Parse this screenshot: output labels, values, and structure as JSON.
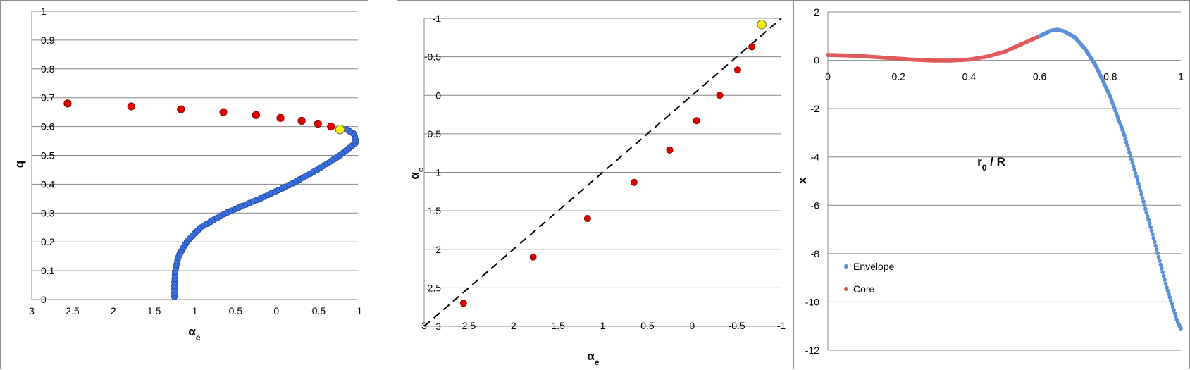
{
  "chart_data": [
    {
      "type": "scatter",
      "xlabel": "α",
      "xlabel_sub": "e",
      "ylabel": "q",
      "xlim": [
        3,
        -1
      ],
      "ylim": [
        0,
        1
      ],
      "x_reversed": true,
      "x_ticks": [
        "3",
        "2.5",
        "2",
        "1.5",
        "1",
        "0.5",
        "0",
        "-0.5",
        "-1"
      ],
      "y_ticks": [
        "0",
        "0.1",
        "0.2",
        "0.3",
        "0.4",
        "0.5",
        "0.6",
        "0.7",
        "0.8",
        "0.9",
        "1"
      ],
      "grid": "horizontal",
      "colors": {
        "red": "#e00000",
        "blue": "#3a6fe0",
        "yellow": "#f5f000"
      },
      "series": [
        {
          "color": "red",
          "x": [
            2.56,
            1.78,
            1.17,
            0.65,
            0.25,
            -0.05,
            -0.31,
            -0.51,
            -0.67
          ],
          "y": [
            0.68,
            0.67,
            0.66,
            0.65,
            0.64,
            0.63,
            0.62,
            0.61,
            0.6
          ]
        },
        {
          "color": "yellow",
          "x": [
            -0.78
          ],
          "y": [
            0.59
          ]
        },
        {
          "color": "blue",
          "curve": [
            [
              1.25,
              0.01
            ],
            [
              1.25,
              0.05
            ],
            [
              1.24,
              0.1
            ],
            [
              1.2,
              0.15
            ],
            [
              1.1,
              0.2
            ],
            [
              0.93,
              0.25
            ],
            [
              0.62,
              0.3
            ],
            [
              0.2,
              0.35
            ],
            [
              -0.18,
              0.4
            ],
            [
              -0.5,
              0.45
            ],
            [
              -0.78,
              0.5
            ],
            [
              -0.98,
              0.545
            ],
            [
              -0.95,
              0.575
            ],
            [
              -0.86,
              0.59
            ]
          ]
        }
      ]
    },
    {
      "type": "scatter",
      "xlabel": "α",
      "xlabel_sub": "e",
      "ylabel": "α",
      "ylabel_sub": "c",
      "xlim": [
        3,
        -1
      ],
      "ylim": [
        3,
        -1
      ],
      "x_reversed": true,
      "y_reversed": true,
      "x_ticks": [
        "3",
        "2.5",
        "2",
        "1.5",
        "1",
        "0.5",
        "0",
        "-0.5",
        "-1"
      ],
      "y_ticks": [
        "3",
        "2.5",
        "2",
        "1.5",
        "1",
        "0.5",
        "0",
        "-0.5",
        "-1"
      ],
      "grid": "horizontal",
      "diagonal": "dashed y = x",
      "colors": {
        "red": "#e00000",
        "yellow": "#f5f000"
      },
      "series": [
        {
          "color": "red",
          "x": [
            2.56,
            1.78,
            1.17,
            0.65,
            0.25,
            -0.05,
            -0.31,
            -0.51,
            -0.67
          ],
          "y": [
            2.7,
            2.1,
            1.6,
            1.13,
            0.71,
            0.33,
            0.0,
            -0.33,
            -0.63
          ]
        },
        {
          "color": "yellow",
          "x": [
            -0.78
          ],
          "y": [
            -0.92
          ]
        }
      ]
    },
    {
      "type": "scatter",
      "xlabel": "r",
      "xlabel_sub": "0",
      "xlabel_rest": " / R",
      "ylabel": "x",
      "xlim": [
        0,
        1
      ],
      "ylim": [
        -12,
        2
      ],
      "x_ticks": [
        "0",
        "0.2",
        "0.4",
        "0.6",
        "0.8",
        "1"
      ],
      "y_ticks": [
        "2",
        "0",
        "-2",
        "-4",
        "-6",
        "-8",
        "-10",
        "-12"
      ],
      "grid": "horizontal",
      "legend": "left",
      "colors": {
        "Envelope": "#5b8fd6",
        "Core": "#e05a5a"
      },
      "series": [
        {
          "name": "Core",
          "range": [
            0,
            0.6
          ],
          "curve": [
            [
              0,
              0.22
            ],
            [
              0.05,
              0.2
            ],
            [
              0.1,
              0.17
            ],
            [
              0.15,
              0.12
            ],
            [
              0.2,
              0.07
            ],
            [
              0.25,
              0.02
            ],
            [
              0.3,
              -0.01
            ],
            [
              0.35,
              -0.01
            ],
            [
              0.4,
              0.03
            ],
            [
              0.45,
              0.15
            ],
            [
              0.5,
              0.35
            ],
            [
              0.55,
              0.68
            ],
            [
              0.6,
              1.0
            ]
          ]
        },
        {
          "name": "Envelope",
          "range": [
            0.6,
            1.0
          ],
          "curve": [
            [
              0.6,
              1.0
            ],
            [
              0.63,
              1.22
            ],
            [
              0.65,
              1.27
            ],
            [
              0.67,
              1.2
            ],
            [
              0.7,
              0.95
            ],
            [
              0.73,
              0.45
            ],
            [
              0.76,
              -0.25
            ],
            [
              0.8,
              -1.5
            ],
            [
              0.84,
              -3.1
            ],
            [
              0.88,
              -5.1
            ],
            [
              0.92,
              -7.2
            ],
            [
              0.96,
              -9.4
            ],
            [
              0.99,
              -10.8
            ],
            [
              1.0,
              -11.1
            ]
          ]
        }
      ]
    }
  ]
}
